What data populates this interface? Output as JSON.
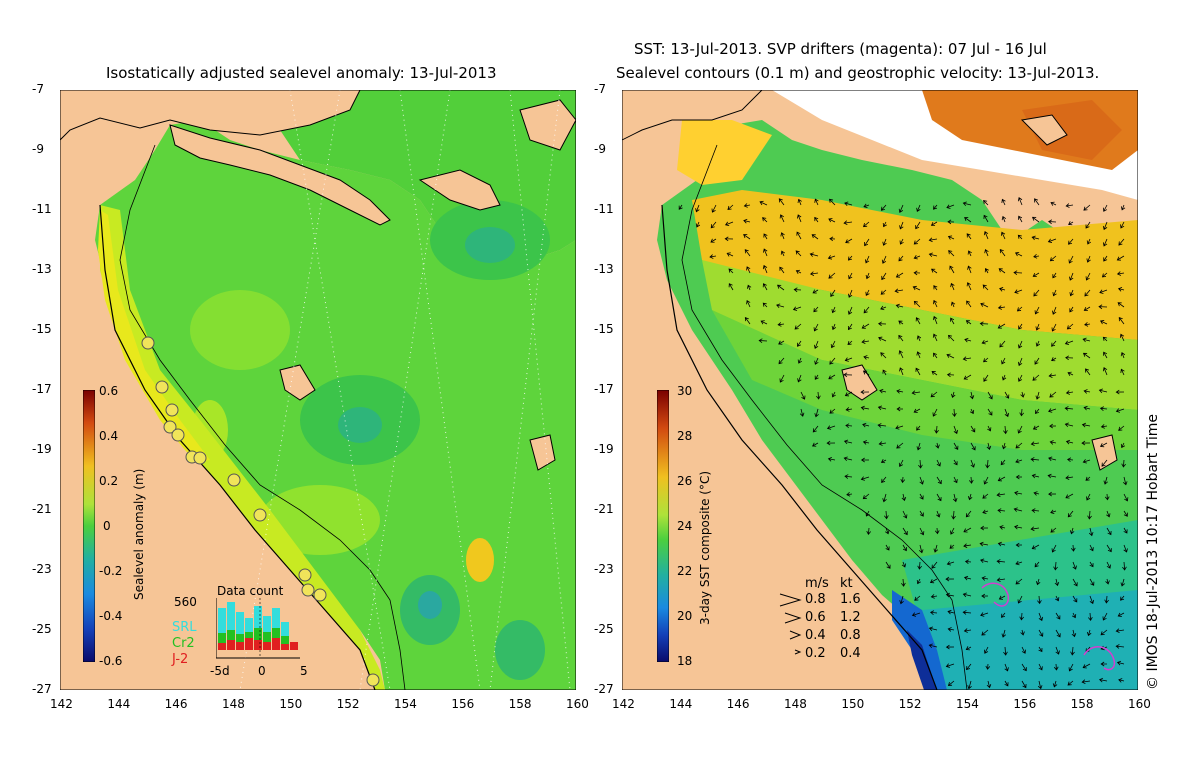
{
  "left_panel": {
    "title": "Isostatically adjusted sealevel anomaly: 13-Jul-2013",
    "x_ticks": [
      "142",
      "144",
      "146",
      "148",
      "150",
      "152",
      "154",
      "156",
      "158",
      "160"
    ],
    "y_ticks": [
      "-7",
      "-9",
      "-11",
      "-13",
      "-15",
      "-17",
      "-19",
      "-21",
      "-23",
      "-25",
      "-27"
    ],
    "colorbar": {
      "title": "Sealevel anomaly (m)",
      "labels": [
        "0.6",
        "0.4",
        "0.2",
        "0",
        "-0.2",
        "-0.4",
        "-0.6"
      ],
      "range": [
        -0.6,
        0.6
      ]
    },
    "data_count": {
      "title": "Data count",
      "max_label": "560",
      "series_labels": [
        "SRL",
        "Cr2",
        "J-2"
      ],
      "series_colors": [
        "#33dddd",
        "#22c022",
        "#e02020"
      ],
      "x_labels": [
        "-5d",
        "0",
        "5"
      ]
    }
  },
  "right_panel": {
    "title_line1": "SST: 13-Jul-2013. SVP drifters (magenta): 07 Jul - 16 Jul",
    "title_line2": "Sealevel contours (0.1 m) and geostrophic velocity: 13-Jul-2013.",
    "x_ticks": [
      "142",
      "144",
      "146",
      "148",
      "150",
      "152",
      "154",
      "156",
      "158",
      "160"
    ],
    "y_ticks": [
      "-7",
      "-9",
      "-11",
      "-13",
      "-15",
      "-17",
      "-19",
      "-21",
      "-23",
      "-25",
      "-27"
    ],
    "colorbar": {
      "title": "3-day SST composite (°C)",
      "labels": [
        "30",
        "28",
        "26",
        "24",
        "22",
        "20",
        "18"
      ],
      "range": [
        18,
        30
      ]
    },
    "velocity_legend": {
      "header_ms": "m/s",
      "header_kt": "kt",
      "rows": [
        {
          "ms": "0.8",
          "kt": "1.6"
        },
        {
          "ms": "0.6",
          "kt": "1.2"
        },
        {
          "ms": "0.4",
          "kt": "0.8"
        },
        {
          "ms": "0.2",
          "kt": "0.4"
        }
      ]
    }
  },
  "credit": "© IMOS 18-Jul-2013 10:17 Hobart Time",
  "colors": {
    "land": "#f6c596",
    "anomaly_base": "#5ed43c",
    "sst_base": "#4ecb52",
    "drifter": "#d040d0"
  }
}
